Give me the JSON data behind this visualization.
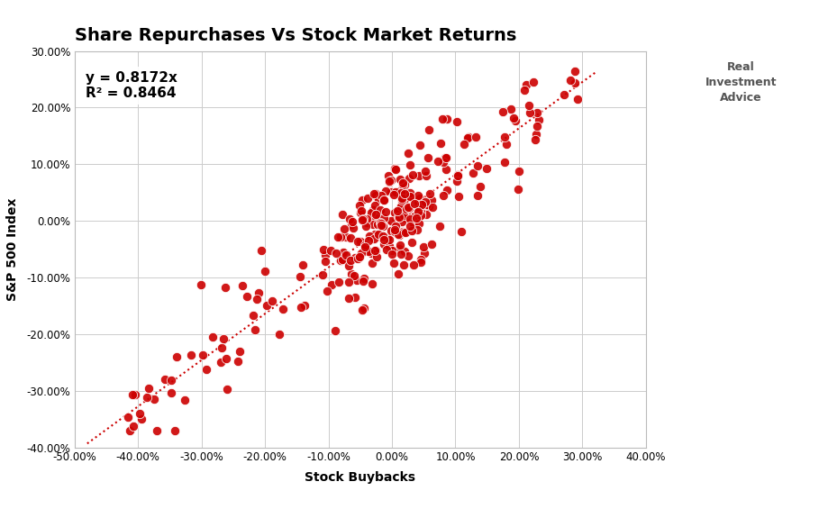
{
  "title": "Share Repurchases Vs Stock Market Returns",
  "xlabel": "Stock Buybacks",
  "ylabel": "S&P 500 Index",
  "equation": "y = 0.8172x",
  "r_squared": "R² = 0.8464",
  "slope": 0.8172,
  "r2": 0.8464,
  "xlim": [
    -0.5,
    0.4
  ],
  "ylim": [
    -0.4,
    0.3
  ],
  "xticks": [
    -0.5,
    -0.4,
    -0.3,
    -0.2,
    -0.1,
    0.0,
    0.1,
    0.2,
    0.3,
    0.4
  ],
  "yticks": [
    -0.4,
    -0.3,
    -0.2,
    -0.1,
    0.0,
    0.1,
    0.2,
    0.3
  ],
  "dot_color": "#CC0000",
  "dot_edge_color": "#ffffff",
  "line_color": "#CC0000",
  "background_color": "#ffffff",
  "grid_color": "#cccccc",
  "title_fontsize": 14,
  "label_fontsize": 10,
  "annotation_fontsize": 11,
  "seed": 42,
  "n_points": 300
}
